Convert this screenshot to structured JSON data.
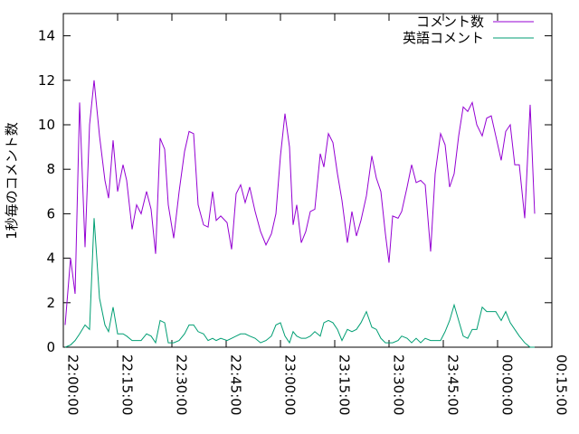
{
  "chart_data": {
    "type": "line",
    "ylabel": "1秒毎のコメント数",
    "xlim": [
      0,
      135
    ],
    "xticks": [
      {
        "value": 0,
        "label": "22:00:00"
      },
      {
        "value": 15,
        "label": "22:15:00"
      },
      {
        "value": 30,
        "label": "22:30:00"
      },
      {
        "value": 45,
        "label": "22:45:00"
      },
      {
        "value": 60,
        "label": "23:00:00"
      },
      {
        "value": 75,
        "label": "23:15:00"
      },
      {
        "value": 90,
        "label": "23:30:00"
      },
      {
        "value": 105,
        "label": "23:45:00"
      },
      {
        "value": 120,
        "label": "00:00:00"
      },
      {
        "value": 135,
        "label": "00:15:00"
      }
    ],
    "ylim": [
      0,
      15
    ],
    "yticks": [
      0,
      2,
      4,
      6,
      8,
      10,
      12,
      14
    ],
    "legend": "top-right",
    "x": [
      0.5,
      2,
      3.25,
      4.5,
      6,
      7.25,
      8.5,
      10,
      11.5,
      12.5,
      13.75,
      15,
      16.5,
      17.5,
      19,
      20.25,
      21.5,
      23,
      24.25,
      25.5,
      26.75,
      28,
      29,
      30.5,
      32,
      33.5,
      34.75,
      36,
      37.25,
      38.75,
      40,
      41.25,
      42.25,
      43.5,
      45.25,
      46.5,
      47.75,
      49,
      50.25,
      51.5,
      53,
      54.5,
      56,
      57.5,
      58.75,
      60,
      61.25,
      62.5,
      63.5,
      64.5,
      65.75,
      67,
      68.25,
      69.5,
      71,
      72,
      73.25,
      74.5,
      75.75,
      77,
      78.5,
      79.75,
      81,
      82.25,
      83.75,
      85.25,
      86.5,
      87.75,
      89,
      90,
      91,
      92.5,
      93.5,
      95,
      96.25,
      97.5,
      98.75,
      100,
      101.5,
      102.75,
      104.25,
      105.5,
      106.75,
      108,
      109.25,
      110.5,
      111.75,
      113,
      114.25,
      115.75,
      117,
      118.25,
      119.5,
      121,
      122.25,
      123.5,
      124.75,
      126,
      127.5,
      129,
      130.25
    ],
    "series": [
      {
        "name": "コメント数",
        "color": "#9400d3",
        "values": [
          1.0,
          4,
          2.4,
          11,
          4.5,
          10,
          12,
          9.5,
          7.5,
          6.7,
          9.3,
          7,
          8.2,
          7.5,
          5.3,
          6.4,
          6,
          7,
          6.2,
          4.2,
          9.4,
          8.9,
          6.4,
          4.9,
          7,
          8.8,
          9.7,
          9.6,
          6.4,
          5.5,
          5.4,
          7,
          5.7,
          5.9,
          5.6,
          4.4,
          6.9,
          7.3,
          6.5,
          7.2,
          6.1,
          5.2,
          4.6,
          5.1,
          6,
          8.6,
          10.5,
          9,
          5.5,
          6.4,
          4.7,
          5.2,
          6.1,
          6.2,
          8.7,
          8.1,
          9.6,
          9.2,
          7.8,
          6.6,
          4.7,
          6.1,
          5,
          5.7,
          6.8,
          8.6,
          7.6,
          7,
          5.1,
          3.8,
          5.9,
          5.8,
          6.1,
          7.2,
          8.2,
          7.4,
          7.5,
          7.3,
          4.3,
          7.8,
          9.6,
          9.1,
          7.2,
          7.8,
          9.5,
          10.8,
          10.6,
          11,
          10,
          9.5,
          10.3,
          10.4,
          9.5,
          8.4,
          9.7,
          10,
          8.2,
          8.2,
          5.8,
          10.9,
          6
        ]
      },
      {
        "name": "英語コメント",
        "color": "#009e73",
        "values": [
          0,
          0.1,
          0.3,
          0.6,
          1.0,
          0.8,
          5.8,
          2.2,
          1.0,
          0.7,
          1.8,
          0.6,
          0.6,
          0.5,
          0.3,
          0.3,
          0.3,
          0.6,
          0.5,
          0.2,
          1.2,
          1.1,
          0.2,
          0.2,
          0.3,
          0.6,
          1.0,
          1.0,
          0.7,
          0.6,
          0.3,
          0.4,
          0.3,
          0.4,
          0.3,
          0.4,
          0.5,
          0.6,
          0.6,
          0.5,
          0.4,
          0.2,
          0.3,
          0.5,
          1.0,
          1.1,
          0.5,
          0.2,
          0.7,
          0.5,
          0.4,
          0.4,
          0.5,
          0.7,
          0.5,
          1.1,
          1.2,
          1.1,
          0.8,
          0.3,
          0.8,
          0.7,
          0.8,
          1.1,
          1.6,
          0.9,
          0.8,
          0.4,
          0.2,
          0.2,
          0.2,
          0.3,
          0.5,
          0.4,
          0.2,
          0.4,
          0.2,
          0.4,
          0.3,
          0.3,
          0.3,
          0.7,
          1.2,
          1.9,
          1.2,
          0.5,
          0.4,
          0.8,
          0.8,
          1.8,
          1.6,
          1.6,
          1.6,
          1.2,
          1.6,
          1.1,
          0.8,
          0.5,
          0.2,
          0,
          0
        ]
      }
    ]
  }
}
